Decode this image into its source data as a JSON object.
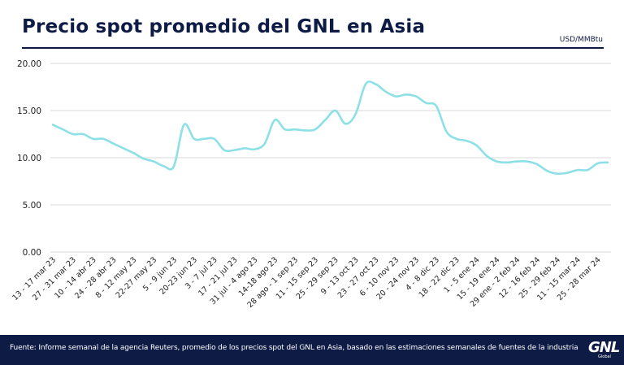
{
  "header": {
    "title": "Precio spot promedio del GNL en Asia",
    "unit": "USD/MMBtu"
  },
  "footer": {
    "source": "Fuente: Informe semanal de la agencia Reuters, promedio de los precios spot del GNL en Asia, basado en las estimaciones semanales de fuentes de la industria",
    "logo_text": "GNL",
    "logo_subtext": "Global"
  },
  "colors": {
    "line": "#8de0e6",
    "navy": "#0e1b45",
    "grid": "#d9d9d9"
  },
  "chart_data": {
    "type": "line",
    "title": "Precio spot promedio del GNL en Asia",
    "xlabel": "",
    "ylabel": "USD/MMBtu",
    "ylim": [
      0,
      20
    ],
    "yticks": [
      "0.00",
      "5.00",
      "10.00",
      "15.00",
      "20.00"
    ],
    "grid": true,
    "categories": [
      "13 - 17 mar 23",
      "27 - 31 mar 23",
      "10 - 14 abr 23",
      "24 - 28 abr 23",
      "8 - 12 may 23",
      "22-27 may 23",
      "5 - 9 jun 23",
      "20-23 jun 23",
      "3 - 7 jul 23",
      "17 - 21 jul 23",
      "31 jul - 4 ago 23",
      "14-18 ago 23",
      "28 ago - 1 sep 23",
      "11 - 15 sep 23",
      "25 - 29 sep 23",
      "9 - 13 oct 23",
      "23 - 27 oct 23",
      "6 - 10 nov 23",
      "20 - 24 nov 23",
      "4 - 8 dic 23",
      "18 - 22 dic 23",
      "1 - 5 ene 24",
      "15 - 19 ene 24",
      "29 ene - 2 feb 24",
      "12 - 16 feb 24",
      "25 - 29 feb 24",
      "11 - 15 mar 24",
      "25 - 28 mar 24"
    ],
    "x": [
      0,
      2,
      4,
      6,
      8,
      10,
      12,
      14,
      16,
      18,
      20,
      22,
      24,
      26,
      28,
      30,
      32,
      34,
      36,
      38,
      40,
      42,
      44,
      46,
      48,
      50,
      52,
      54
    ],
    "series": [
      {
        "values": [
          [
            0,
            13.5
          ],
          [
            1,
            13.0
          ],
          [
            2,
            12.5
          ],
          [
            3,
            12.5
          ],
          [
            4,
            12.0
          ],
          [
            5,
            12.0
          ],
          [
            6,
            11.5
          ],
          [
            7,
            11.0
          ],
          [
            8,
            10.5
          ],
          [
            9,
            9.9
          ],
          [
            10,
            9.6
          ],
          [
            11,
            9.1
          ],
          [
            12,
            9.1
          ],
          [
            13,
            13.5
          ],
          [
            14,
            12.0
          ],
          [
            15,
            12.0
          ],
          [
            16,
            12.0
          ],
          [
            17,
            10.8
          ],
          [
            18,
            10.8
          ],
          [
            19,
            11.0
          ],
          [
            20,
            10.9
          ],
          [
            21,
            11.5
          ],
          [
            22,
            14.0
          ],
          [
            23,
            13.0
          ],
          [
            24,
            13.0
          ],
          [
            25,
            12.9
          ],
          [
            26,
            13.0
          ],
          [
            27,
            14.0
          ],
          [
            28,
            15.0
          ],
          [
            29,
            13.6
          ],
          [
            30,
            14.6
          ],
          [
            31,
            17.8
          ],
          [
            32,
            17.8
          ],
          [
            33,
            17.0
          ],
          [
            34,
            16.5
          ],
          [
            35,
            16.7
          ],
          [
            36,
            16.5
          ],
          [
            37,
            15.8
          ],
          [
            38,
            15.5
          ],
          [
            39,
            12.8
          ],
          [
            40,
            12.0
          ],
          [
            41,
            11.8
          ],
          [
            42,
            11.3
          ],
          [
            43,
            10.2
          ],
          [
            44,
            9.6
          ],
          [
            45,
            9.5
          ],
          [
            46,
            9.6
          ],
          [
            47,
            9.6
          ],
          [
            48,
            9.3
          ],
          [
            49,
            8.6
          ],
          [
            50,
            8.3
          ],
          [
            51,
            8.4
          ],
          [
            52,
            8.7
          ],
          [
            53,
            8.7
          ],
          [
            54,
            9.4
          ],
          [
            55,
            9.5
          ]
        ]
      }
    ]
  }
}
